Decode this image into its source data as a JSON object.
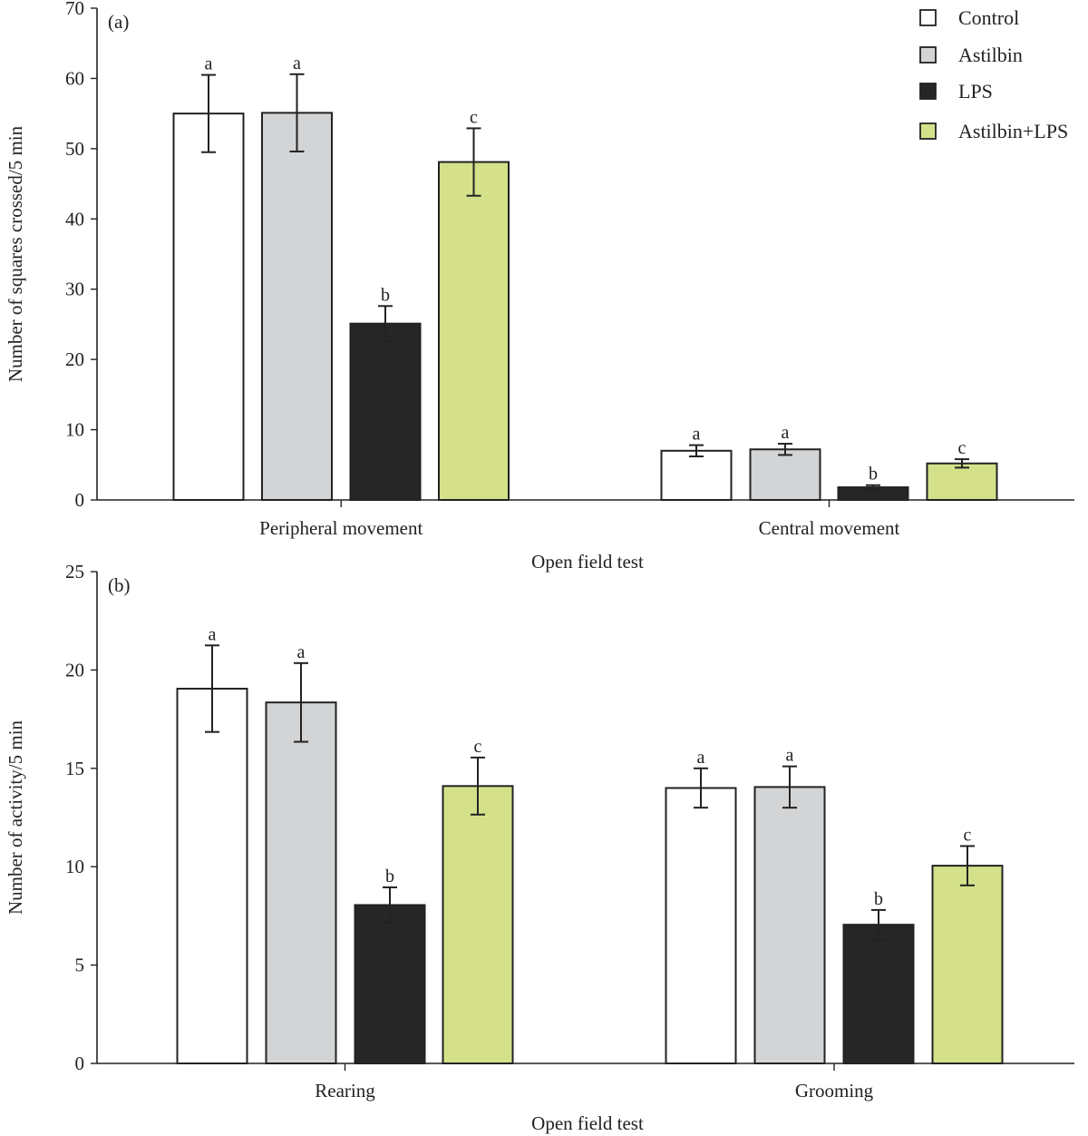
{
  "legend": {
    "placement": "top-right",
    "entries": [
      {
        "name": "Control",
        "color": "#ffffff"
      },
      {
        "name": "Astilbin",
        "color": "#d3d4d6"
      },
      {
        "name": "LPS",
        "color": "#262626"
      },
      {
        "name": "Astilbin+LPS",
        "color": "#d4e18a"
      }
    ]
  },
  "chart_data": [
    {
      "type": "bar",
      "panel_label": "(a)",
      "xlabel": "Open field test",
      "ylabel": "Number of squares crossed/5 min",
      "ylim": [
        0,
        70
      ],
      "yticks": [
        0,
        10,
        20,
        30,
        40,
        50,
        60,
        70
      ],
      "grid": false,
      "categories": [
        "Peripheral movement",
        "Central movement"
      ],
      "series": [
        {
          "name": "Control",
          "values": [
            55.0,
            7.0
          ],
          "errors": [
            5.5,
            0.8
          ],
          "letters": [
            "a",
            "a"
          ]
        },
        {
          "name": "Astilbin",
          "values": [
            55.1,
            7.2
          ],
          "errors": [
            5.5,
            0.8
          ],
          "letters": [
            "a",
            "a"
          ]
        },
        {
          "name": "LPS",
          "values": [
            25.1,
            1.8
          ],
          "errors": [
            2.5,
            0.3
          ],
          "letters": [
            "b",
            "b"
          ]
        },
        {
          "name": "Astilbin+LPS",
          "values": [
            48.1,
            5.2
          ],
          "errors": [
            4.8,
            0.6
          ],
          "letters": [
            "c",
            "c"
          ]
        }
      ]
    },
    {
      "type": "bar",
      "panel_label": "(b)",
      "xlabel": "Open field test",
      "ylabel": "Number of activity/5 min",
      "ylim": [
        0,
        25
      ],
      "yticks": [
        0,
        5,
        10,
        15,
        20,
        25
      ],
      "grid": false,
      "categories": [
        "Rearing",
        "Grooming"
      ],
      "series": [
        {
          "name": "Control",
          "values": [
            19.05,
            14.0
          ],
          "errors": [
            2.2,
            1.0
          ],
          "letters": [
            "a",
            "a"
          ]
        },
        {
          "name": "Astilbin",
          "values": [
            18.35,
            14.05
          ],
          "errors": [
            2.0,
            1.05
          ],
          "letters": [
            "a",
            "a"
          ]
        },
        {
          "name": "LPS",
          "values": [
            8.05,
            7.05
          ],
          "errors": [
            0.9,
            0.75
          ],
          "letters": [
            "b",
            "b"
          ]
        },
        {
          "name": "Astilbin+LPS",
          "values": [
            14.1,
            10.05
          ],
          "errors": [
            1.45,
            1.0
          ],
          "letters": [
            "c",
            "c"
          ]
        }
      ]
    }
  ]
}
